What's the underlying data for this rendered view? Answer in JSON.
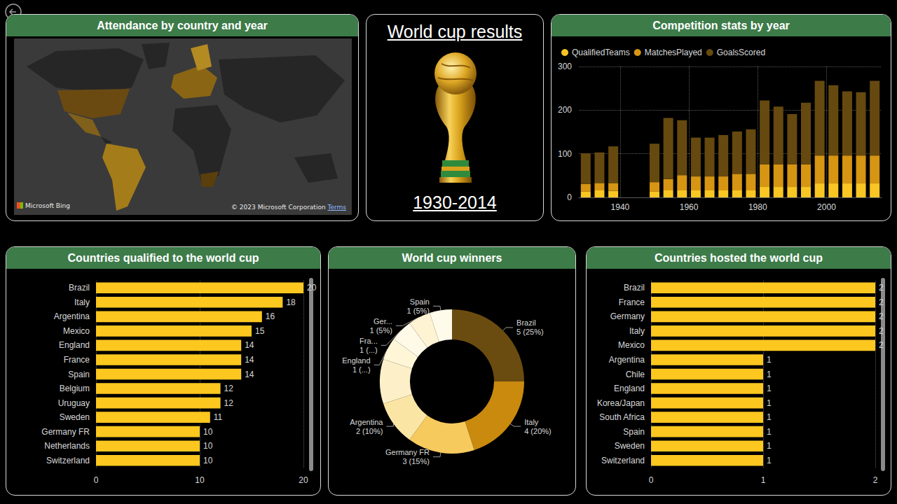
{
  "title_card": {
    "title": "World cup results",
    "subtitle": "1930-2014"
  },
  "chart_data": [
    {
      "type": "map",
      "title": "Attendance by country and year",
      "annotations": [
        "Microsoft Bing",
        "© 2023 Microsoft Corporation",
        "Terms"
      ]
    },
    {
      "type": "bar",
      "title": "Competition stats by year",
      "stacked": true,
      "grid": true,
      "legend": "top-left",
      "x": [
        1930,
        1934,
        1938,
        1950,
        1954,
        1958,
        1962,
        1966,
        1970,
        1974,
        1978,
        1982,
        1986,
        1990,
        1994,
        1998,
        2002,
        2006,
        2010,
        2014
      ],
      "xlim": [
        1928,
        2016
      ],
      "xticks": [
        1940,
        1960,
        1980,
        2000
      ],
      "ylim": [
        0,
        300
      ],
      "yticks": [
        0,
        100,
        200,
        300
      ],
      "series": [
        {
          "name": "QualifiedTeams",
          "color": "#f9c623",
          "values": [
            13,
            16,
            15,
            13,
            16,
            16,
            16,
            16,
            16,
            16,
            16,
            24,
            24,
            24,
            24,
            32,
            32,
            32,
            32,
            32
          ]
        },
        {
          "name": "MatchesPlayed",
          "color": "#d69512",
          "values": [
            18,
            17,
            18,
            22,
            26,
            35,
            32,
            32,
            32,
            38,
            38,
            52,
            52,
            52,
            52,
            64,
            64,
            64,
            64,
            64
          ]
        },
        {
          "name": "GoalsScored",
          "color": "#66490f",
          "values": [
            70,
            70,
            84,
            88,
            140,
            126,
            89,
            89,
            95,
            97,
            102,
            146,
            132,
            115,
            141,
            171,
            161,
            147,
            145,
            171
          ]
        }
      ]
    },
    {
      "type": "bar",
      "title": "Countries qualified to the world cup",
      "orientation": "horizontal",
      "grid": true,
      "data_labels": true,
      "color": "#fcc71f",
      "categories": [
        "Brazil",
        "Italy",
        "Argentina",
        "Mexico",
        "England",
        "France",
        "Spain",
        "Belgium",
        "Uruguay",
        "Sweden",
        "Germany FR",
        "Netherlands",
        "Switzerland"
      ],
      "values": [
        20,
        18,
        16,
        15,
        14,
        14,
        14,
        12,
        12,
        11,
        10,
        10,
        10
      ],
      "xlim": [
        0,
        20
      ],
      "xticks": [
        0,
        10,
        20
      ]
    },
    {
      "type": "pie",
      "title": "World cup winners",
      "data_labels": true,
      "categories": [
        "Brazil",
        "Italy",
        "Germany FR",
        "Argentina",
        null,
        "England",
        "Fra...",
        "Ger...",
        "Spain"
      ],
      "values": [
        5,
        4,
        3,
        2,
        2,
        1,
        1,
        1,
        1
      ],
      "value_labels": [
        "5 (25%)",
        "4 (20%)",
        "3 (15%)",
        "2 (10%)",
        null,
        "1 (...)",
        "1 (...)",
        "1 (5%)",
        "1 (5%)"
      ],
      "colors": [
        "#6b4c10",
        "#c98a0e",
        "#f7ca5e",
        "#fbe5a4",
        "#fdf0c8",
        "#fff6d8",
        "#fffae8",
        "#fef3d2",
        "#fffbea"
      ]
    },
    {
      "type": "bar",
      "title": "Countries hosted the world cup",
      "orientation": "horizontal",
      "grid": true,
      "data_labels": true,
      "color": "#fcc71f",
      "categories": [
        "Brazil",
        "France",
        "Germany",
        "Italy",
        "Mexico",
        "Argentina",
        "Chile",
        "England",
        "Korea/Japan",
        "South Africa",
        "Spain",
        "Sweden",
        "Switzerland"
      ],
      "values": [
        2,
        2,
        2,
        2,
        2,
        1,
        1,
        1,
        1,
        1,
        1,
        1,
        1
      ],
      "xlim": [
        0,
        2
      ],
      "xticks": [
        0,
        1,
        2
      ]
    }
  ]
}
